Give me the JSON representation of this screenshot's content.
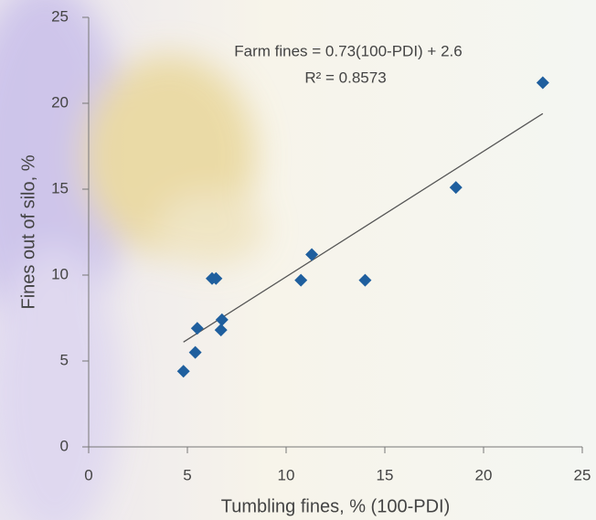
{
  "chart_data": {
    "type": "scatter",
    "x_label": "Tumbling fines, % (100-PDI)",
    "y_label": "Fines out of silo, %",
    "annotations": [
      "Farm fines = 0.73(100-PDI) + 2.6",
      "R² = 0.8573"
    ],
    "series": [
      {
        "color": "#1f5f9e",
        "x": [
          4.8,
          5.4,
          5.5,
          6.25,
          6.45,
          6.75,
          6.7,
          10.75,
          11.3,
          14,
          18.6,
          23
        ],
        "values": [
          4.4,
          5.5,
          6.9,
          9.8,
          9.8,
          7.4,
          6.8,
          9.7,
          11.2,
          9.7,
          15.1,
          21.2
        ]
      }
    ],
    "trendline": {
      "color": "#555555",
      "x": [
        4.8,
        23
      ],
      "y": [
        6.1,
        19.4
      ]
    },
    "xlim": [
      0,
      25
    ],
    "xticks": [
      0,
      5,
      10,
      15,
      20,
      25
    ],
    "ylim": [
      0,
      25
    ],
    "yticks": [
      0,
      5,
      10,
      15,
      20,
      25
    ]
  }
}
